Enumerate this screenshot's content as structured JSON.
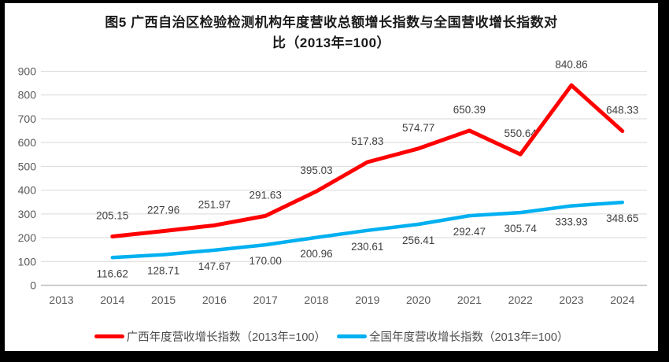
{
  "frame": {
    "background": "#ffffff",
    "border_color": "#000000"
  },
  "title_lines": [
    "图5  广西自治区检验检测机构年度营收总额增长指数与全国营收增长指数对",
    "比（2013年=100）"
  ],
  "chart_data": {
    "type": "line",
    "title": "图5 广西自治区检验检测机构年度营收总额增长指数与全国营收增长指数对比（2013年=100）",
    "xlabel": "",
    "ylabel": "",
    "categories": [
      "2013",
      "2014",
      "2015",
      "2016",
      "2017",
      "2018",
      "2019",
      "2020",
      "2021",
      "2022",
      "2023",
      "2024"
    ],
    "yticks": [
      "0",
      "100",
      "200",
      "300",
      "400",
      "500",
      "600",
      "700",
      "800",
      "900"
    ],
    "ylim": [
      0,
      900
    ],
    "grid": true,
    "legend_position": "bottom",
    "series": [
      {
        "name": "广西年度营收增长指数（2013年=100）",
        "color": "#ff0000",
        "label_side": "above",
        "values": [
          null,
          "205.15",
          "227.96",
          "251.97",
          "291.63",
          "395.03",
          "517.83",
          "574.77",
          "650.39",
          "550.64",
          "840.86",
          "648.33"
        ]
      },
      {
        "name": "全国年度营收增长指数（2013年=100）",
        "color": "#00b0f0",
        "label_side": "below",
        "values": [
          null,
          "116.62",
          "128.71",
          "147.67",
          "170.00",
          "200.96",
          "230.61",
          "256.41",
          "292.47",
          "305.74",
          "333.93",
          "348.65"
        ]
      }
    ],
    "colors": {
      "gridline": "#d9d9d9",
      "axis_line": "#bfbfbf",
      "tick_text": "#595959",
      "data_label_text": "#404040"
    }
  }
}
